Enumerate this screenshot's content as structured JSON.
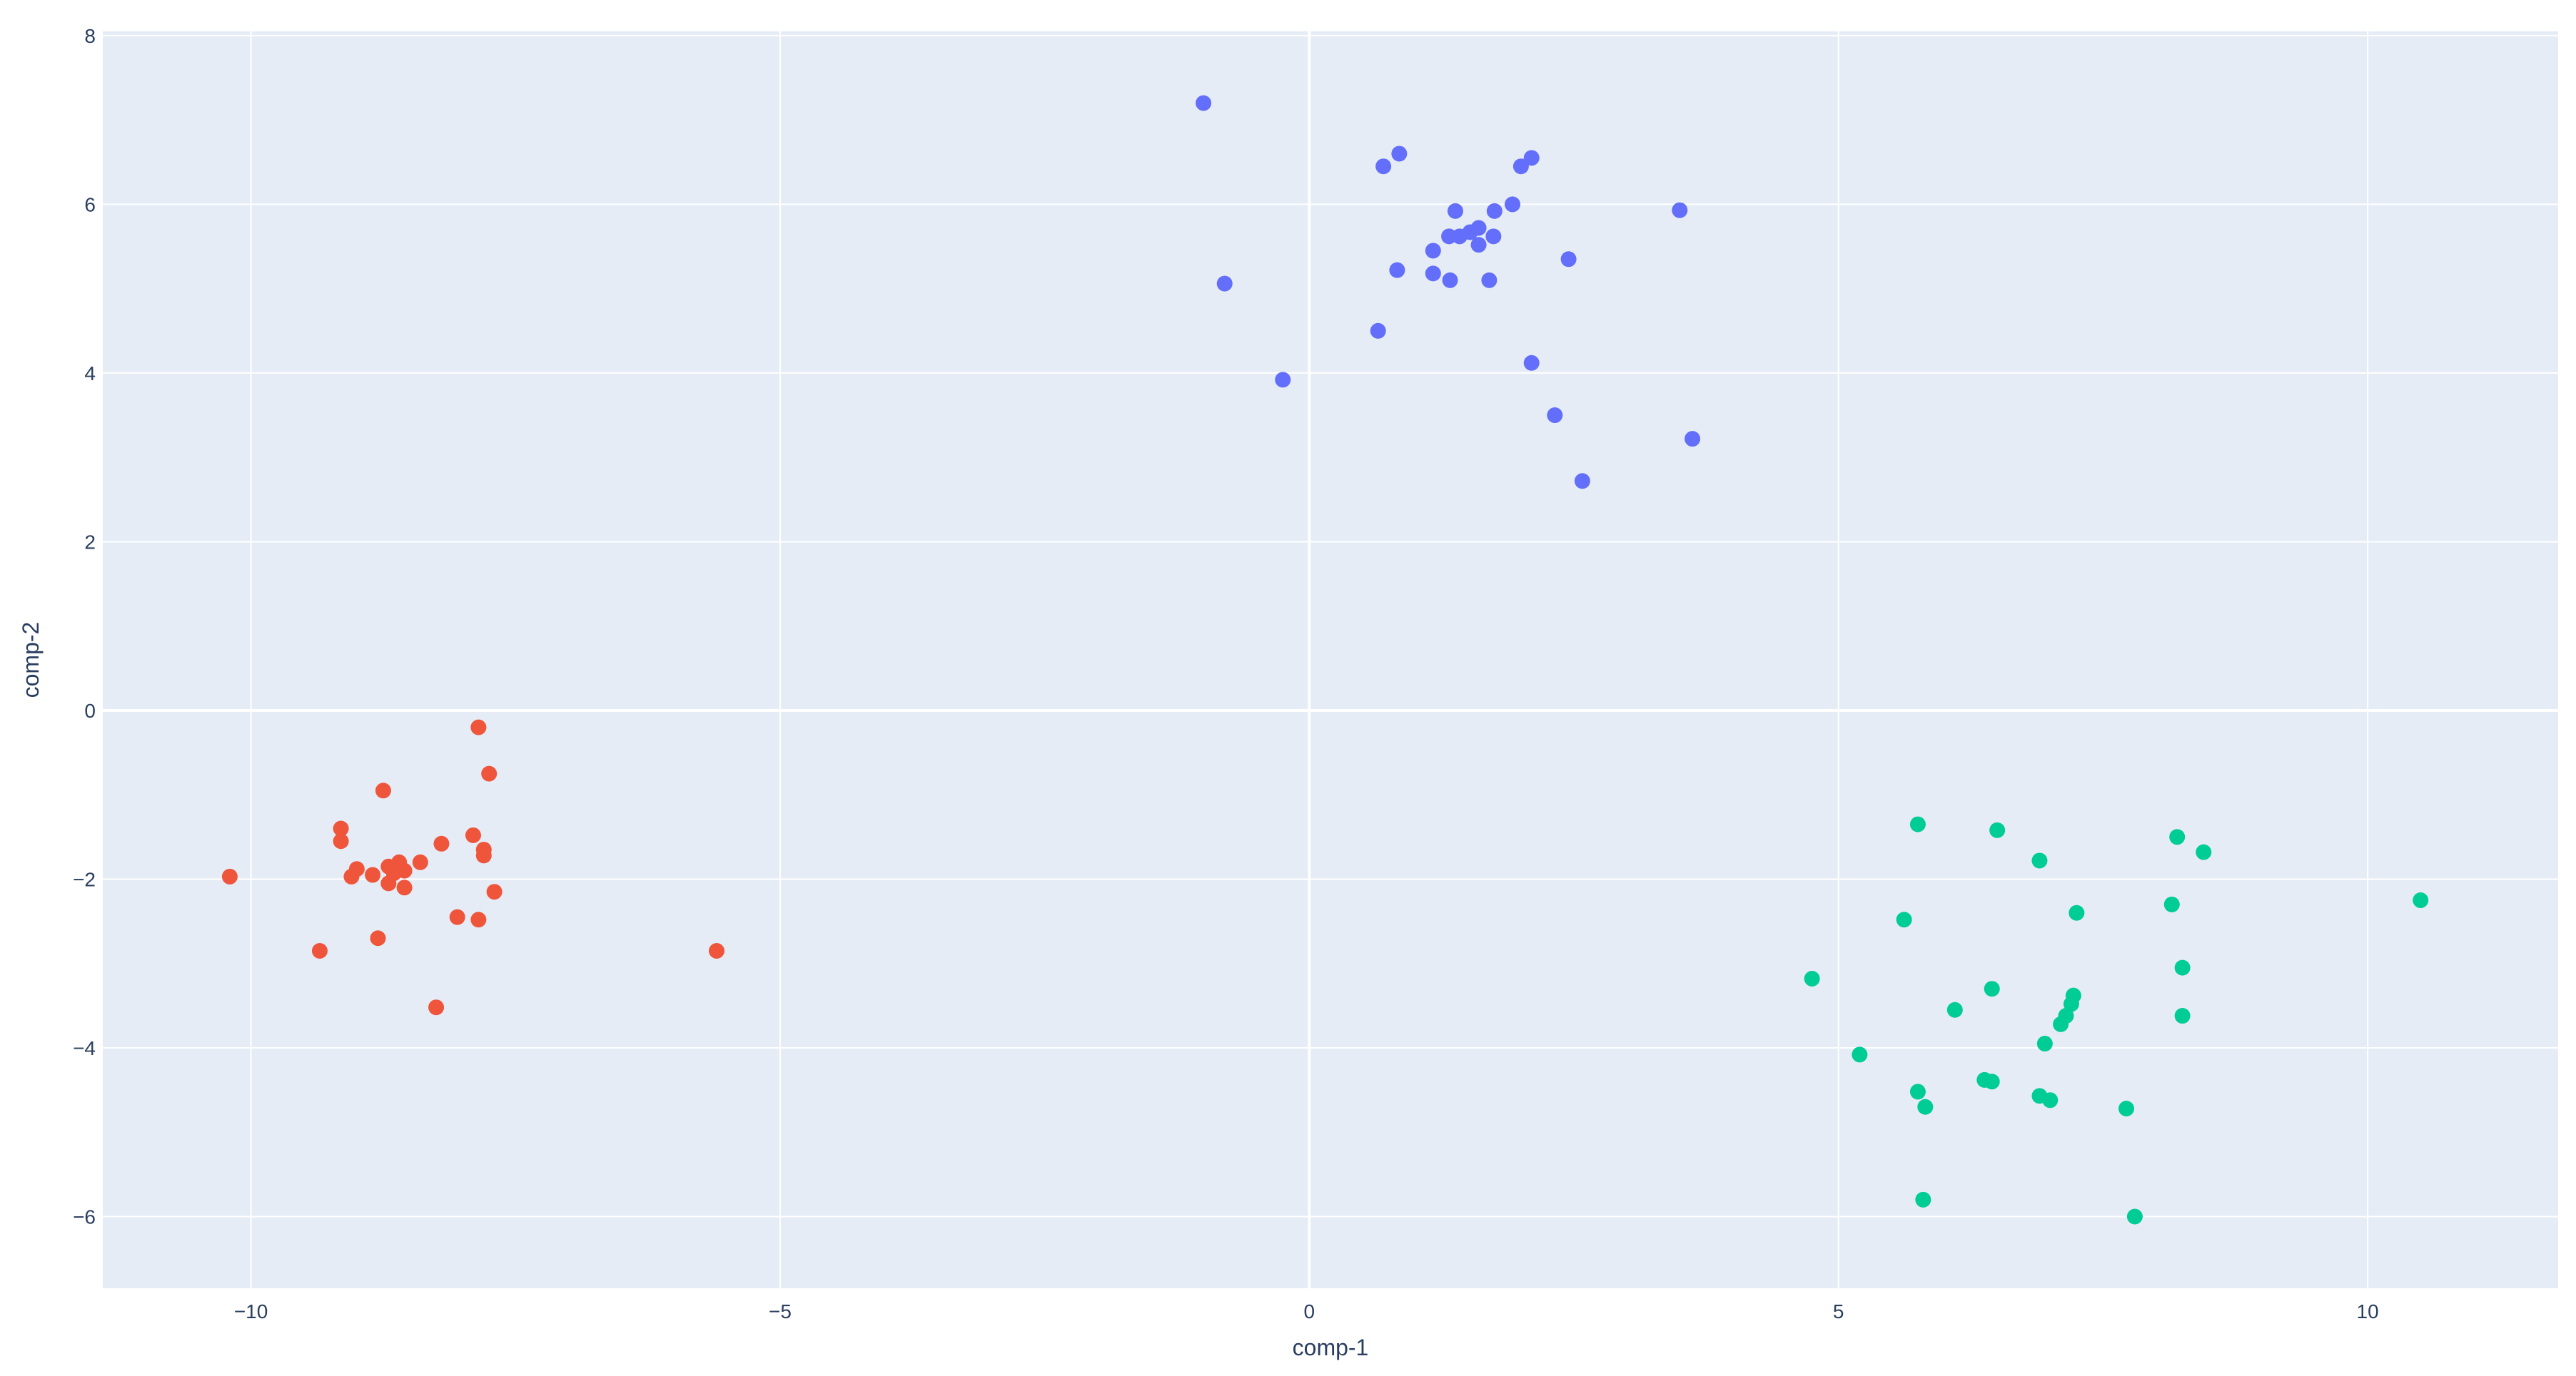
{
  "chart_data": {
    "type": "scatter",
    "xlabel": "comp-1",
    "ylabel": "comp-2",
    "xlim": [
      -11.4,
      11.8
    ],
    "ylim": [
      -6.85,
      8.05
    ],
    "x_ticks": [
      -10,
      -5,
      0,
      5,
      10
    ],
    "x_tick_labels": [
      "−10",
      "−5",
      "0",
      "5",
      "10"
    ],
    "y_ticks": [
      -6,
      -4,
      -2,
      0,
      2,
      4,
      6,
      8
    ],
    "y_tick_labels": [
      "−6",
      "−4",
      "−2",
      "0",
      "2",
      "4",
      "6",
      "8"
    ],
    "grid": true,
    "legend": "none",
    "plot_background": "#e5ecf6",
    "series": [
      {
        "color": "#636efa",
        "points": [
          [
            -1.0,
            7.2
          ],
          [
            0.85,
            6.6
          ],
          [
            2.1,
            6.55
          ],
          [
            0.7,
            6.45
          ],
          [
            2.0,
            6.45
          ],
          [
            1.92,
            6.0
          ],
          [
            1.38,
            5.92
          ],
          [
            1.75,
            5.92
          ],
          [
            3.5,
            5.93
          ],
          [
            1.32,
            5.62
          ],
          [
            1.42,
            5.62
          ],
          [
            1.52,
            5.67
          ],
          [
            1.6,
            5.72
          ],
          [
            1.74,
            5.62
          ],
          [
            1.17,
            5.45
          ],
          [
            1.6,
            5.52
          ],
          [
            2.45,
            5.35
          ],
          [
            0.83,
            5.22
          ],
          [
            1.17,
            5.18
          ],
          [
            1.33,
            5.1
          ],
          [
            1.7,
            5.1
          ],
          [
            -0.8,
            5.06
          ],
          [
            0.65,
            4.5
          ],
          [
            2.1,
            4.12
          ],
          [
            -0.25,
            3.92
          ],
          [
            2.32,
            3.5
          ],
          [
            3.62,
            3.22
          ],
          [
            2.58,
            2.72
          ]
        ]
      },
      {
        "color": "#ef553b",
        "points": [
          [
            -7.85,
            -0.2
          ],
          [
            -7.75,
            -0.75
          ],
          [
            -8.75,
            -0.95
          ],
          [
            -9.15,
            -1.4
          ],
          [
            -7.9,
            -1.48
          ],
          [
            -9.15,
            -1.55
          ],
          [
            -8.2,
            -1.58
          ],
          [
            -7.8,
            -1.65
          ],
          [
            -7.8,
            -1.72
          ],
          [
            -8.6,
            -1.8
          ],
          [
            -8.4,
            -1.8
          ],
          [
            -8.7,
            -1.85
          ],
          [
            -9.0,
            -1.88
          ],
          [
            -8.55,
            -1.9
          ],
          [
            -8.65,
            -1.93
          ],
          [
            -8.85,
            -1.95
          ],
          [
            -9.05,
            -1.97
          ],
          [
            -10.2,
            -1.97
          ],
          [
            -8.7,
            -2.05
          ],
          [
            -8.55,
            -2.1
          ],
          [
            -7.7,
            -2.15
          ],
          [
            -8.8,
            -2.7
          ],
          [
            -8.05,
            -2.45
          ],
          [
            -7.85,
            -2.48
          ],
          [
            -9.35,
            -2.85
          ],
          [
            -5.6,
            -2.85
          ],
          [
            -8.25,
            -3.52
          ]
        ]
      },
      {
        "color": "#00cc96",
        "points": [
          [
            5.75,
            -1.35
          ],
          [
            6.5,
            -1.42
          ],
          [
            8.2,
            -1.5
          ],
          [
            8.45,
            -1.68
          ],
          [
            6.9,
            -1.78
          ],
          [
            8.15,
            -2.3
          ],
          [
            7.25,
            -2.4
          ],
          [
            5.62,
            -2.48
          ],
          [
            10.5,
            -2.25
          ],
          [
            8.25,
            -3.05
          ],
          [
            4.75,
            -3.18
          ],
          [
            6.45,
            -3.3
          ],
          [
            7.22,
            -3.38
          ],
          [
            7.2,
            -3.48
          ],
          [
            6.1,
            -3.55
          ],
          [
            8.25,
            -3.62
          ],
          [
            7.15,
            -3.62
          ],
          [
            7.1,
            -3.72
          ],
          [
            6.95,
            -3.95
          ],
          [
            5.2,
            -4.08
          ],
          [
            6.38,
            -4.38
          ],
          [
            6.45,
            -4.4
          ],
          [
            5.75,
            -4.52
          ],
          [
            6.9,
            -4.57
          ],
          [
            7.0,
            -4.62
          ],
          [
            5.82,
            -4.7
          ],
          [
            7.72,
            -4.72
          ],
          [
            5.8,
            -5.8
          ],
          [
            7.8,
            -6.0
          ]
        ]
      }
    ]
  }
}
